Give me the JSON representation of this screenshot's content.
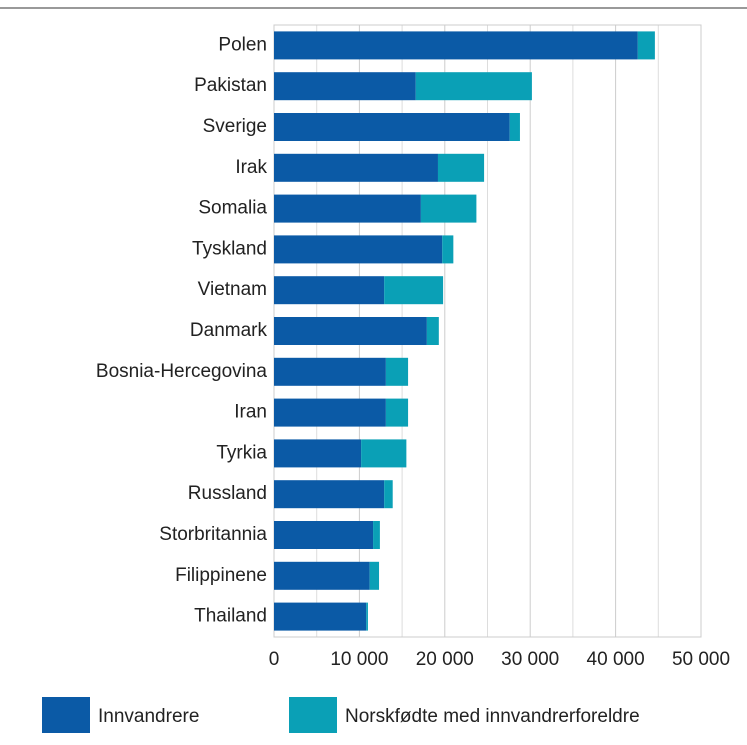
{
  "chart_data": {
    "type": "barh_stacked",
    "categories": [
      "Polen",
      "Pakistan",
      "Sverige",
      "Irak",
      "Somalia",
      "Tyskland",
      "Vietnam",
      "Danmark",
      "Bosnia-Hercegovina",
      "Iran",
      "Tyrkia",
      "Russland",
      "Storbritannia",
      "Filippinene",
      "Thailand"
    ],
    "series": [
      {
        "name": "Innvandrere",
        "color": "#0b5aa6",
        "values": [
          42600,
          16600,
          27600,
          19200,
          17200,
          19700,
          12900,
          17900,
          13100,
          13100,
          10200,
          12900,
          11600,
          11200,
          10800
        ]
      },
      {
        "name": "Norskfødte med innvandrerforeldre",
        "color": "#0aa0b6",
        "values": [
          2000,
          13600,
          1200,
          5400,
          6500,
          1300,
          6900,
          1400,
          2600,
          2600,
          5300,
          1000,
          800,
          1100,
          200
        ]
      }
    ],
    "xlim": [
      0,
      50000
    ],
    "xticks": [
      0,
      {
        "value": 10000,
        "label": "10 000"
      },
      {
        "value": 20000,
        "label": "20 000"
      },
      {
        "value": 30000,
        "label": "30 000"
      },
      {
        "value": 40000,
        "label": "40 000"
      },
      {
        "value": 50000,
        "label": "50 000"
      }
    ],
    "minor_xticks": [
      5000,
      15000,
      25000,
      35000,
      45000
    ],
    "grid": true,
    "legend": "bottom"
  }
}
